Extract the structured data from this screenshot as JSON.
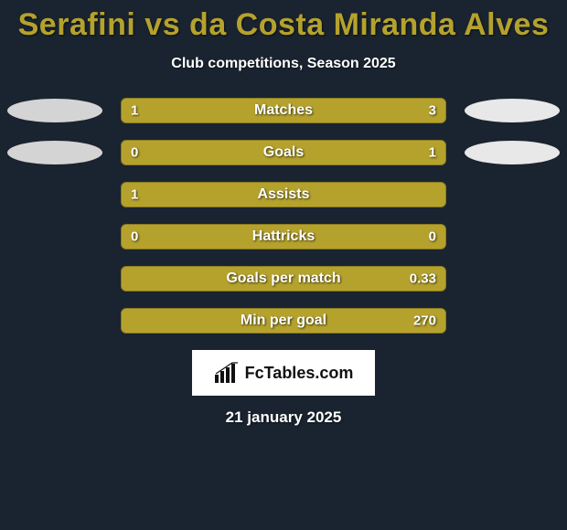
{
  "header": {
    "title": "Serafini vs da Costa Miranda Alves",
    "title_color": "#b5a22d",
    "subtitle": "Club competitions, Season 2025"
  },
  "colors": {
    "background": "#1a2430",
    "player1_accent": "#b5a22d",
    "player2_accent": "#ffffff",
    "bar_track": "#b5a22d",
    "bar_border": "#8a7a1f",
    "ellipse_p1": "#d4d4d4",
    "ellipse_p2": "#e8e8e8",
    "label_shadow": "rgba(0,0,0,0.6)"
  },
  "chart": {
    "track_width": 344,
    "track_height": 28,
    "row_gap": 18,
    "stats": [
      {
        "label": "Matches",
        "left_value": "1",
        "right_value": "3",
        "left_pct": 25,
        "right_pct": 75,
        "show_left_ellipse": true,
        "show_right_ellipse": true
      },
      {
        "label": "Goals",
        "left_value": "0",
        "right_value": "1",
        "left_pct": 18,
        "right_pct": 82,
        "show_left_ellipse": true,
        "show_right_ellipse": true
      },
      {
        "label": "Assists",
        "left_value": "1",
        "right_value": "",
        "left_pct": 100,
        "right_pct": 0,
        "show_left_ellipse": false,
        "show_right_ellipse": false
      },
      {
        "label": "Hattricks",
        "left_value": "0",
        "right_value": "0",
        "left_pct": 50,
        "right_pct": 50,
        "show_left_ellipse": false,
        "show_right_ellipse": false
      },
      {
        "label": "Goals per match",
        "left_value": "",
        "right_value": "0.33",
        "left_pct": 10,
        "right_pct": 90,
        "show_left_ellipse": false,
        "show_right_ellipse": false
      },
      {
        "label": "Min per goal",
        "left_value": "",
        "right_value": "270",
        "left_pct": 10,
        "right_pct": 90,
        "show_left_ellipse": false,
        "show_right_ellipse": false
      }
    ]
  },
  "footer": {
    "logo_text": "FcTables.com",
    "date": "21 january 2025"
  }
}
